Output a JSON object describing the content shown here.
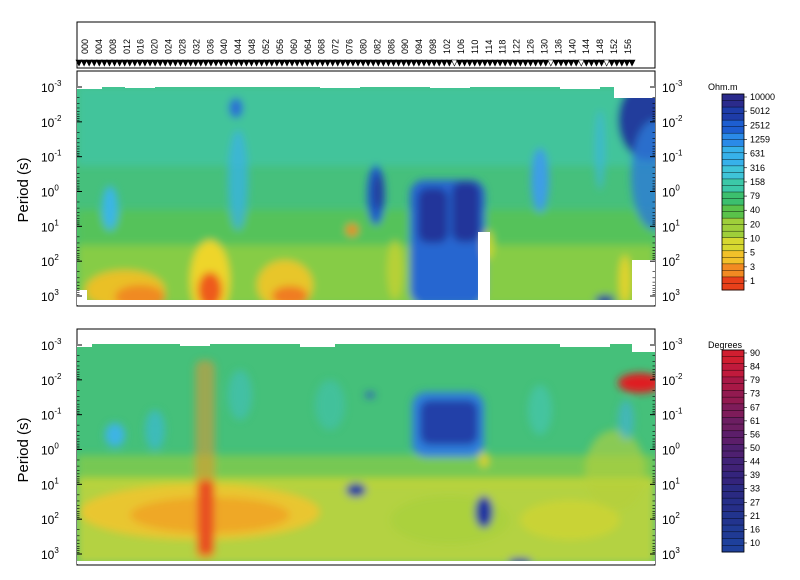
{
  "chart_data": [
    {
      "type": "heatmap",
      "title": "",
      "xlabel": "",
      "ylabel": "Period (s)",
      "y_scale": "log",
      "y_ticks": [
        {
          "base": "10",
          "exp": "-3"
        },
        {
          "base": "10",
          "exp": "-2"
        },
        {
          "base": "10",
          "exp": "-1"
        },
        {
          "base": "10",
          "exp": "0"
        },
        {
          "base": "10",
          "exp": "1"
        },
        {
          "base": "10",
          "exp": "2"
        },
        {
          "base": "10",
          "exp": "3"
        }
      ],
      "stations": [
        "000",
        "004",
        "008",
        "012",
        "016",
        "020",
        "024",
        "028",
        "032",
        "036",
        "040",
        "044",
        "048",
        "052",
        "056",
        "060",
        "064",
        "068",
        "072",
        "076",
        "080",
        "082",
        "086",
        "090",
        "094",
        "098",
        "102",
        "106",
        "110",
        "114",
        "118",
        "122",
        "126",
        "130",
        "136",
        "140",
        "144",
        "148",
        "152",
        "156"
      ],
      "colorbar": {
        "title": "Ohm.m",
        "labels": [
          "10000",
          "5012",
          "2512",
          "1259",
          "631",
          "316",
          "158",
          "79",
          "40",
          "20",
          "10",
          "5",
          "3",
          "1"
        ],
        "range": [
          1,
          10000
        ],
        "colors": [
          "#2b2b8c",
          "#1e3ca8",
          "#1d5ed0",
          "#2a8ae8",
          "#37b1ea",
          "#3fc4d8",
          "#3cc8a8",
          "#3cbf6e",
          "#5ac24a",
          "#9fcf3a",
          "#d6d830",
          "#f2c12a",
          "#f28a22",
          "#e8401a"
        ]
      },
      "grid": "off",
      "legend_placement": "right"
    },
    {
      "type": "heatmap",
      "title": "",
      "xlabel": "",
      "ylabel": "Period (s)",
      "y_scale": "log",
      "y_ticks": [
        {
          "base": "10",
          "exp": "-3"
        },
        {
          "base": "10",
          "exp": "-2"
        },
        {
          "base": "10",
          "exp": "-1"
        },
        {
          "base": "10",
          "exp": "0"
        },
        {
          "base": "10",
          "exp": "1"
        },
        {
          "base": "10",
          "exp": "2"
        },
        {
          "base": "10",
          "exp": "3"
        }
      ],
      "colorbar": {
        "title": "Degrees",
        "labels": [
          "90",
          "84",
          "79",
          "73",
          "67",
          "61",
          "56",
          "50",
          "44",
          "39",
          "33",
          "27",
          "21",
          "16",
          "10"
        ],
        "range": [
          10,
          90
        ],
        "colors": [
          "#d01e30",
          "#c01a3c",
          "#a81846",
          "#921a50",
          "#7e1c5a",
          "#6c1e62",
          "#5c1e6a",
          "#4e2070",
          "#402276",
          "#34247c",
          "#2a2a82",
          "#262e88",
          "#22348e",
          "#203a94",
          "#1e409c"
        ]
      },
      "grid": "off",
      "legend_placement": "right"
    }
  ]
}
